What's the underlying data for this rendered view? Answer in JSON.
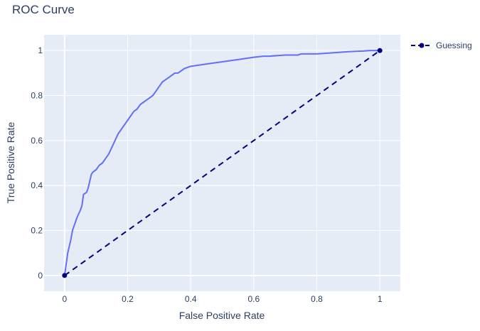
{
  "chart_data": {
    "type": "line",
    "title": "ROC Curve",
    "xlabel": "False Positive Rate",
    "ylabel": "True Positive Rate",
    "xlim": [
      -0.065,
      1.065
    ],
    "ylim": [
      -0.07,
      1.07
    ],
    "x_ticks": [
      0,
      0.2,
      0.4,
      0.6,
      0.8,
      1
    ],
    "x_tick_labels": [
      "0",
      "0.2",
      "0.4",
      "0.6",
      "0.8",
      "1"
    ],
    "y_ticks": [
      0,
      0.2,
      0.4,
      0.6,
      0.8,
      1
    ],
    "y_tick_labels": [
      "0",
      "0.2",
      "0.4",
      "0.6",
      "0.8",
      "1"
    ],
    "grid": true,
    "legend_position": "top-right",
    "series": [
      {
        "mode": "line",
        "color": "#636efa",
        "x": [
          0,
          0.005,
          0.01,
          0.015,
          0.02,
          0.025,
          0.03,
          0.04,
          0.05,
          0.055,
          0.06,
          0.07,
          0.075,
          0.08,
          0.085,
          0.09,
          0.1,
          0.11,
          0.12,
          0.13,
          0.14,
          0.15,
          0.16,
          0.17,
          0.18,
          0.19,
          0.2,
          0.21,
          0.22,
          0.23,
          0.24,
          0.25,
          0.26,
          0.27,
          0.28,
          0.29,
          0.3,
          0.31,
          0.32,
          0.33,
          0.34,
          0.35,
          0.36,
          0.37,
          0.38,
          0.39,
          0.4,
          0.45,
          0.5,
          0.55,
          0.6,
          0.63,
          0.65,
          0.7,
          0.74,
          0.75,
          0.8,
          0.85,
          0.9,
          0.95,
          0.97,
          1.0
        ],
        "y": [
          0,
          0.05,
          0.1,
          0.13,
          0.16,
          0.2,
          0.22,
          0.26,
          0.29,
          0.31,
          0.36,
          0.37,
          0.39,
          0.42,
          0.45,
          0.46,
          0.47,
          0.49,
          0.5,
          0.52,
          0.54,
          0.57,
          0.6,
          0.63,
          0.65,
          0.67,
          0.69,
          0.71,
          0.73,
          0.74,
          0.76,
          0.77,
          0.78,
          0.79,
          0.8,
          0.82,
          0.84,
          0.86,
          0.87,
          0.88,
          0.89,
          0.9,
          0.9,
          0.91,
          0.92,
          0.925,
          0.93,
          0.94,
          0.95,
          0.96,
          0.97,
          0.975,
          0.975,
          0.98,
          0.98,
          0.985,
          0.985,
          0.99,
          0.995,
          0.998,
          1.0,
          1.0
        ]
      },
      {
        "name": "Guessing",
        "mode": "lines+markers",
        "dash": "dash",
        "color": "#000080",
        "x": [
          0,
          1
        ],
        "y": [
          0,
          1
        ]
      }
    ]
  }
}
